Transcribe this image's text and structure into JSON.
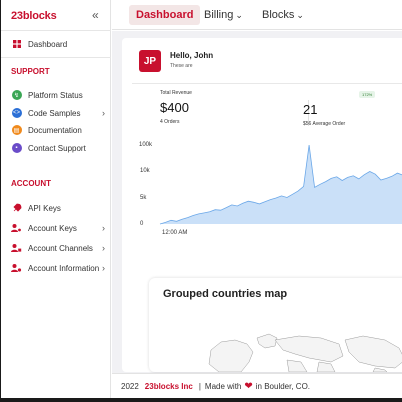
{
  "brand": {
    "logo_text": "23blocks",
    "accent": "#c8102e"
  },
  "sidebar": {
    "collapse_icon": "double-chevron-left-icon",
    "dashboard_label": "Dashboard",
    "support_title": "SUPPORT",
    "support_items": [
      {
        "label": "Platform Status",
        "icon": "platform-status-icon",
        "color": "#3aa655",
        "has_chevron": false
      },
      {
        "label": "Code Samples",
        "icon": "code-icon",
        "color": "#2b6fd6",
        "has_chevron": true
      },
      {
        "label": "Documentation",
        "icon": "document-icon",
        "color": "#f08a1c",
        "has_chevron": false
      },
      {
        "label": "Contact Support",
        "icon": "chat-icon",
        "color": "#6a4cc9",
        "has_chevron": false
      }
    ],
    "account_title": "ACCOUNT",
    "account_items": [
      {
        "label": "API Keys",
        "icon": "rocket-icon",
        "has_chevron": false
      },
      {
        "label": "Account Keys",
        "icon": "user-key-icon",
        "has_chevron": true
      },
      {
        "label": "Account Channels",
        "icon": "user-channel-icon",
        "has_chevron": true
      },
      {
        "label": "Account Information",
        "icon": "user-info-icon",
        "has_chevron": true
      }
    ]
  },
  "topbar": {
    "tabs": [
      {
        "label": "Dashboard",
        "active": true
      },
      {
        "label": "Billing",
        "active": false
      },
      {
        "label": "Blocks",
        "active": false
      }
    ]
  },
  "welcome": {
    "avatar": "JP",
    "greeting": "Hello, John",
    "subtitle": "These are"
  },
  "stats": {
    "revenue_label": "Total Revenue",
    "revenue_value": "$400",
    "orders_text": "4 Orders",
    "avg_value": "21",
    "avg_text": "$56 Average Order",
    "badge": "172%"
  },
  "chart_data": {
    "type": "area",
    "y_ticks": [
      "100k",
      "10k",
      "5k",
      "0"
    ],
    "x_tick_labels": [
      "12:00 AM"
    ],
    "series": [
      {
        "values": [
          0,
          300,
          700,
          500,
          900,
          1200,
          1600,
          1900,
          2100,
          2300,
          2700,
          2600,
          3100,
          3600,
          3400,
          3900,
          4300,
          4100,
          3800,
          4200,
          4600,
          4900,
          5300,
          5000,
          5600,
          6200,
          7100,
          30000,
          6900,
          7500,
          8000,
          8600,
          8900,
          8200,
          8800,
          9100,
          8500,
          9300,
          9900,
          9400,
          8300,
          8600,
          9000,
          9600,
          9200,
          8700,
          9400
        ]
      }
    ],
    "fill_color": "#b8d6f5",
    "line_color": "#6aa7e8"
  },
  "map": {
    "title": "Grouped countries map"
  },
  "footer": {
    "year": "2022",
    "company": "23blocks Inc",
    "made_with": "Made with",
    "location": "in Boulder, CO."
  }
}
